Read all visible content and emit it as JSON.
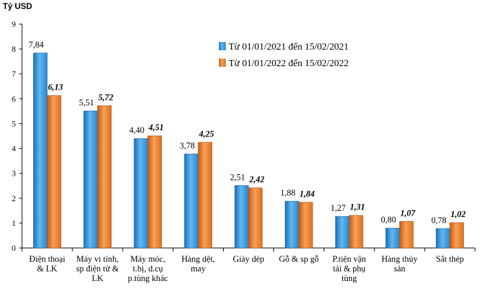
{
  "chart_data": {
    "type": "bar",
    "unit_label": "Tỷ USD",
    "categories": [
      [
        "Điện thoại",
        "& LK"
      ],
      [
        "Máy vi tính,",
        "sp điện tử &",
        "LK"
      ],
      [
        "Máy móc,",
        "t.bị, d.cụ",
        "p.tùng khác"
      ],
      [
        "Hàng dệt,",
        "may"
      ],
      [
        "Giày dép"
      ],
      [
        "Gỗ & sp gỗ"
      ],
      [
        "P.tiện vận",
        "tải & phụ",
        "tùng"
      ],
      [
        "Hàng thủy",
        "sản"
      ],
      [
        "Sắt thép"
      ]
    ],
    "series": [
      {
        "name": "Từ 01/01/2021 đến 15/02/2021",
        "color": "#3399dd",
        "values": [
          7.84,
          5.51,
          4.4,
          3.78,
          2.51,
          1.88,
          1.27,
          0.8,
          0.78
        ],
        "labels": [
          "7,84",
          "5,51",
          "4,40",
          "3,78",
          "2,51",
          "1,88",
          "1,27",
          "0,80",
          "0,78"
        ]
      },
      {
        "name": "Từ 01/01/2022 đến 15/02/2022",
        "color": "#e8782a",
        "values": [
          6.13,
          5.72,
          4.51,
          4.25,
          2.42,
          1.84,
          1.31,
          1.07,
          1.02
        ],
        "labels": [
          "6,13",
          "5,72",
          "4,51",
          "4,25",
          "2,42",
          "1,84",
          "1,31",
          "1,07",
          "1,02"
        ]
      }
    ],
    "ylim": [
      0,
      9
    ],
    "yticks": [
      "0",
      "1",
      "2",
      "3",
      "4",
      "5",
      "6",
      "7",
      "8",
      "9"
    ],
    "legend_position": "top-right",
    "grid": false
  }
}
